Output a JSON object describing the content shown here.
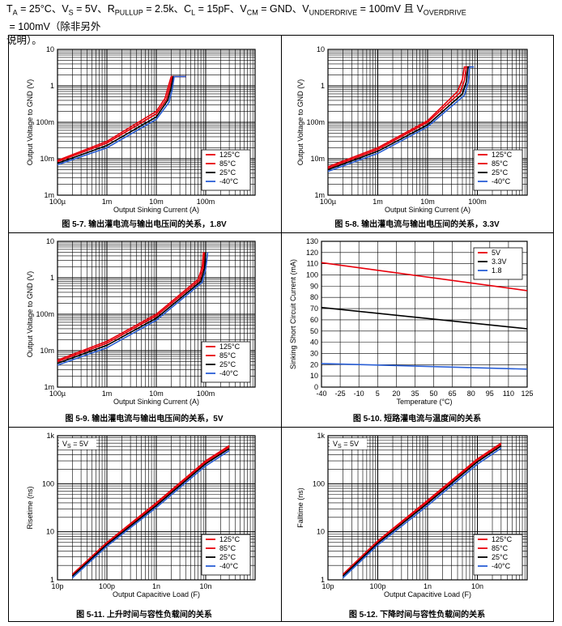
{
  "header": {
    "line1_segments": [
      "T",
      "A",
      " = 25°C、V",
      "S",
      " = 5V、R",
      "PULLUP",
      " = 2.5k、C",
      "L",
      " = 15pF、V",
      "CM",
      " = GND、V",
      "UNDERDRIVE",
      " = 100mV 且 V",
      "OVERDRIVE",
      " = 100mV（除非另外"
    ],
    "line2": "说明）。"
  },
  "chart_data": [
    {
      "id": "fig-5-7",
      "type": "line",
      "xscale": "log",
      "yscale": "log",
      "xlim": [
        0.0001,
        1
      ],
      "ylim": [
        0.001,
        10
      ],
      "xticks": [
        "100µ",
        "1m",
        "10m",
        "100m"
      ],
      "yticks": [
        "10",
        "1",
        "100m",
        "10m",
        "1m"
      ],
      "xlabel": "Output Sinking Current (A)",
      "ylabel": "Output Voltage to GND (V)",
      "caption": "图 5-7. 输出灌电流与输出电压间的关系，1.8V",
      "legend": [
        "125°C",
        "85°C",
        "25°C",
        "-40°C"
      ],
      "series": [
        {
          "name": "125°C",
          "color": "#e8000b",
          "points": [
            [
              0.0001,
              0.009
            ],
            [
              0.001,
              0.03
            ],
            [
              0.01,
              0.2
            ],
            [
              0.015,
              0.45
            ],
            [
              0.018,
              1.1
            ],
            [
              0.02,
              1.8
            ],
            [
              0.04,
              1.8
            ]
          ]
        },
        {
          "name": "85°C",
          "color": "#e8000b",
          "points": [
            [
              0.0001,
              0.0083
            ],
            [
              0.001,
              0.027
            ],
            [
              0.01,
              0.17
            ],
            [
              0.016,
              0.42
            ],
            [
              0.019,
              1.0
            ],
            [
              0.021,
              1.8
            ],
            [
              0.04,
              1.8
            ]
          ]
        },
        {
          "name": "25°C",
          "color": "#000000",
          "points": [
            [
              0.0001,
              0.0075
            ],
            [
              0.001,
              0.023
            ],
            [
              0.01,
              0.14
            ],
            [
              0.017,
              0.4
            ],
            [
              0.02,
              0.9
            ],
            [
              0.022,
              1.8
            ],
            [
              0.04,
              1.8
            ]
          ]
        },
        {
          "name": "-40°C",
          "color": "#2a5fd6",
          "points": [
            [
              0.0001,
              0.0068
            ],
            [
              0.001,
              0.02
            ],
            [
              0.01,
              0.12
            ],
            [
              0.018,
              0.35
            ],
            [
              0.021,
              0.8
            ],
            [
              0.023,
              1.8
            ],
            [
              0.04,
              1.8
            ]
          ]
        }
      ]
    },
    {
      "id": "fig-5-8",
      "type": "line",
      "xscale": "log",
      "yscale": "log",
      "xlim": [
        0.0001,
        1
      ],
      "ylim": [
        0.001,
        10
      ],
      "xticks": [
        "100µ",
        "1m",
        "10m",
        "100m"
      ],
      "yticks": [
        "10",
        "1",
        "100m",
        "10m",
        "1m"
      ],
      "xlabel": "Output Sinking Current (A)",
      "ylabel": "Output Voltage to GND (V)",
      "caption": "图 5-8. 输出灌电流与输出电压间的关系，3.3V",
      "legend": [
        "125°C",
        "85°C",
        "25°C",
        "-40°C"
      ],
      "series": [
        {
          "name": "125°C",
          "color": "#e8000b",
          "points": [
            [
              0.0001,
              0.006
            ],
            [
              0.001,
              0.02
            ],
            [
              0.01,
              0.11
            ],
            [
              0.04,
              0.7
            ],
            [
              0.05,
              1.5
            ],
            [
              0.055,
              3.3
            ],
            [
              0.07,
              3.3
            ]
          ]
        },
        {
          "name": "85°C",
          "color": "#e8000b",
          "points": [
            [
              0.0001,
              0.0055
            ],
            [
              0.001,
              0.018
            ],
            [
              0.01,
              0.1
            ],
            [
              0.045,
              0.65
            ],
            [
              0.055,
              1.4
            ],
            [
              0.06,
              3.3
            ],
            [
              0.075,
              3.3
            ]
          ]
        },
        {
          "name": "25°C",
          "color": "#000000",
          "points": [
            [
              0.0001,
              0.005
            ],
            [
              0.001,
              0.016
            ],
            [
              0.01,
              0.085
            ],
            [
              0.05,
              0.6
            ],
            [
              0.06,
              1.3
            ],
            [
              0.065,
              3.3
            ],
            [
              0.08,
              3.3
            ]
          ]
        },
        {
          "name": "-40°C",
          "color": "#2a5fd6",
          "points": [
            [
              0.0001,
              0.0045
            ],
            [
              0.001,
              0.014
            ],
            [
              0.01,
              0.075
            ],
            [
              0.055,
              0.55
            ],
            [
              0.065,
              1.2
            ],
            [
              0.07,
              3.3
            ],
            [
              0.085,
              3.3
            ]
          ]
        }
      ]
    },
    {
      "id": "fig-5-9",
      "type": "line",
      "xscale": "log",
      "yscale": "log",
      "xlim": [
        0.0001,
        1
      ],
      "ylim": [
        0.001,
        10
      ],
      "xticks": [
        "100µ",
        "1m",
        "10m",
        "100m"
      ],
      "yticks": [
        "10",
        "1",
        "100m",
        "10m",
        "1m"
      ],
      "xlabel": "Output Sinking Current (A)",
      "ylabel": "Output Voltage to GND (V)",
      "caption": "图 5-9. 输出灌电流与输出电压间的关系，5V",
      "legend": [
        "125°C",
        "85°C",
        "25°C",
        "-40°C"
      ],
      "series": [
        {
          "name": "125°C",
          "color": "#e8000b",
          "points": [
            [
              0.0001,
              0.0055
            ],
            [
              0.001,
              0.018
            ],
            [
              0.01,
              0.1
            ],
            [
              0.07,
              0.9
            ],
            [
              0.085,
              2.0
            ],
            [
              0.09,
              5.0
            ]
          ]
        },
        {
          "name": "85°C",
          "color": "#e8000b",
          "points": [
            [
              0.0001,
              0.005
            ],
            [
              0.001,
              0.016
            ],
            [
              0.01,
              0.09
            ],
            [
              0.075,
              0.85
            ],
            [
              0.09,
              1.9
            ],
            [
              0.095,
              5.0
            ]
          ]
        },
        {
          "name": "25°C",
          "color": "#000000",
          "points": [
            [
              0.0001,
              0.0045
            ],
            [
              0.001,
              0.014
            ],
            [
              0.01,
              0.078
            ],
            [
              0.08,
              0.8
            ],
            [
              0.095,
              1.8
            ],
            [
              0.1,
              5.0
            ]
          ]
        },
        {
          "name": "-40°C",
          "color": "#2a5fd6",
          "points": [
            [
              0.0001,
              0.004
            ],
            [
              0.001,
              0.012
            ],
            [
              0.01,
              0.068
            ],
            [
              0.085,
              0.75
            ],
            [
              0.1,
              1.7
            ],
            [
              0.11,
              5.0
            ]
          ]
        }
      ]
    },
    {
      "id": "fig-5-10",
      "type": "line",
      "xscale": "linear",
      "yscale": "linear",
      "xlim": [
        -40,
        125
      ],
      "ylim": [
        0,
        130
      ],
      "xticks": [
        "-40",
        "-25",
        "-10",
        "5",
        "20",
        "35",
        "50",
        "65",
        "80",
        "95",
        "110",
        "125"
      ],
      "yticks": [
        "130",
        "120",
        "110",
        "100",
        "90",
        "80",
        "70",
        "60",
        "50",
        "40",
        "30",
        "20",
        "10",
        "0"
      ],
      "xlabel": "Temperature (°C)",
      "ylabel": "Sinking Short Circuit Current (mA)",
      "caption": "图 5-10. 短路灌电流与温度间的关系",
      "legend": [
        "5V",
        "3.3V",
        "1.8"
      ],
      "series": [
        {
          "name": "5V",
          "color": "#e8000b",
          "points": [
            [
              -40,
              111
            ],
            [
              125,
              86
            ]
          ]
        },
        {
          "name": "3.3V",
          "color": "#000000",
          "points": [
            [
              -40,
              71
            ],
            [
              125,
              52
            ]
          ]
        },
        {
          "name": "1.8",
          "color": "#2a5fd6",
          "points": [
            [
              -40,
              21
            ],
            [
              125,
              16
            ]
          ]
        }
      ]
    },
    {
      "id": "fig-5-11",
      "type": "line",
      "xscale": "log",
      "yscale": "log",
      "xlim": [
        1e-11,
        1e-07
      ],
      "ylim": [
        1,
        1000
      ],
      "xticks": [
        "10p",
        "100p",
        "1n",
        "10n"
      ],
      "yticks": [
        "1k",
        "100",
        "10",
        "1"
      ],
      "xlabel": "Output Capacitive Load (F)",
      "ylabel": "Risetime (ns)",
      "annotation": "V_S = 5V",
      "caption": "图 5-11. 上升时间与容性负载间的关系",
      "legend": [
        "125°C",
        "85°C",
        "25°C",
        "-40°C"
      ],
      "series": [
        {
          "name": "125°C",
          "color": "#e8000b",
          "points": [
            [
              2e-11,
              1.3
            ],
            [
              1e-10,
              6
            ],
            [
              1e-09,
              40
            ],
            [
              1e-08,
              300
            ],
            [
              3e-08,
              620
            ]
          ]
        },
        {
          "name": "85°C",
          "color": "#e8000b",
          "points": [
            [
              2e-11,
              1.25
            ],
            [
              1e-10,
              5.7
            ],
            [
              1e-09,
              38
            ],
            [
              1e-08,
              280
            ],
            [
              3e-08,
              580
            ]
          ]
        },
        {
          "name": "25°C",
          "color": "#000000",
          "points": [
            [
              2e-11,
              1.2
            ],
            [
              1e-10,
              5.4
            ],
            [
              1e-09,
              35
            ],
            [
              1e-08,
              260
            ],
            [
              3e-08,
              540
            ]
          ]
        },
        {
          "name": "-40°C",
          "color": "#2a5fd6",
          "points": [
            [
              2e-11,
              1.1
            ],
            [
              1e-10,
              5
            ],
            [
              1e-09,
              32
            ],
            [
              1e-08,
              235
            ],
            [
              3e-08,
              490
            ]
          ]
        }
      ]
    },
    {
      "id": "fig-5-12",
      "type": "line",
      "xscale": "log",
      "yscale": "log",
      "xlim": [
        1e-11,
        1e-07
      ],
      "ylim": [
        1,
        1000
      ],
      "xticks": [
        "10p",
        "100p",
        "1n",
        "10n"
      ],
      "yticks": [
        "1k",
        "100",
        "10",
        "1"
      ],
      "xlabel": "Output Capacitive Load (F)",
      "ylabel": "Falltime (ns)",
      "annotation": "V_S = 5V",
      "caption": "图 5-12. 下降时间与容性负载间的关系",
      "legend": [
        "125°C",
        "85°C",
        "25°C",
        "-40°C"
      ],
      "series": [
        {
          "name": "125°C",
          "color": "#e8000b",
          "points": [
            [
              2e-11,
              1.3
            ],
            [
              1e-10,
              6.5
            ],
            [
              1e-09,
              45
            ],
            [
              1e-08,
              330
            ],
            [
              3e-08,
              700
            ]
          ]
        },
        {
          "name": "85°C",
          "color": "#e8000b",
          "points": [
            [
              2e-11,
              1.25
            ],
            [
              1e-10,
              6.2
            ],
            [
              1e-09,
              42
            ],
            [
              1e-08,
              310
            ],
            [
              3e-08,
              660
            ]
          ]
        },
        {
          "name": "25°C",
          "color": "#000000",
          "points": [
            [
              2e-11,
              1.2
            ],
            [
              1e-10,
              5.8
            ],
            [
              1e-09,
              39
            ],
            [
              1e-08,
              285
            ],
            [
              3e-08,
              610
            ]
          ]
        },
        {
          "name": "-40°C",
          "color": "#2a5fd6",
          "points": [
            [
              2e-11,
              1.1
            ],
            [
              1e-10,
              5.3
            ],
            [
              1e-09,
              35
            ],
            [
              1e-08,
              255
            ],
            [
              3e-08,
              550
            ]
          ]
        }
      ]
    }
  ]
}
